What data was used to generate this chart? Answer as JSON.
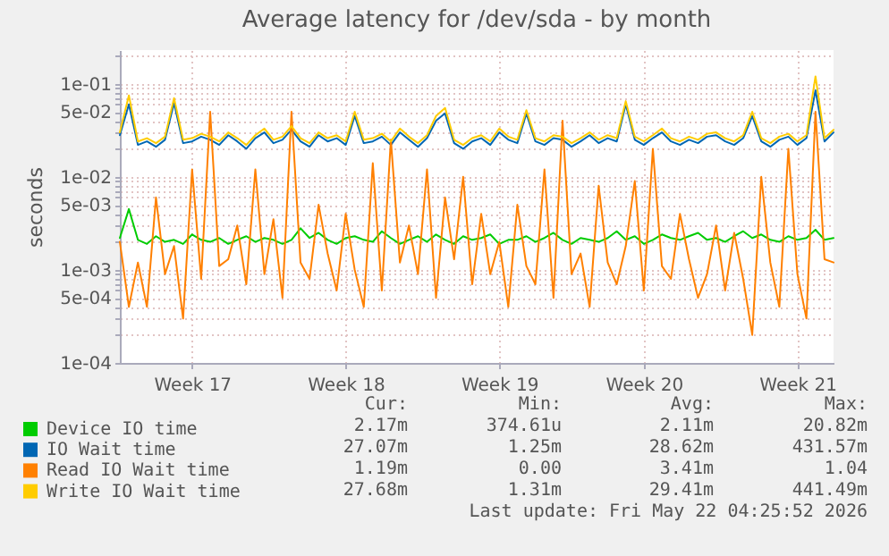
{
  "chart_data": {
    "type": "line",
    "title": "Average latency for /dev/sda - by month",
    "ylabel": "seconds",
    "log": "y",
    "grid": true,
    "legend": "bottom left",
    "line_style": "solid",
    "ylim": [
      0.0001,
      0.23
    ],
    "yticks": [
      {
        "value": 0.0001,
        "label": "1e-04"
      },
      {
        "value": 0.0002,
        "label": null
      },
      {
        "value": 0.0003,
        "label": null
      },
      {
        "value": 0.0004,
        "label": null
      },
      {
        "value": 0.0005,
        "label": "5e-04"
      },
      {
        "value": 0.0006,
        "label": null
      },
      {
        "value": 0.0007,
        "label": null
      },
      {
        "value": 0.0008,
        "label": null
      },
      {
        "value": 0.0009,
        "label": null
      },
      {
        "value": 0.001,
        "label": "1e-03"
      },
      {
        "value": 0.002,
        "label": null
      },
      {
        "value": 0.003,
        "label": null
      },
      {
        "value": 0.004,
        "label": null
      },
      {
        "value": 0.005,
        "label": "5e-03"
      },
      {
        "value": 0.006,
        "label": null
      },
      {
        "value": 0.007,
        "label": null
      },
      {
        "value": 0.008,
        "label": null
      },
      {
        "value": 0.009,
        "label": null
      },
      {
        "value": 0.01,
        "label": "1e-02"
      },
      {
        "value": 0.02,
        "label": null
      },
      {
        "value": 0.03,
        "label": null
      },
      {
        "value": 0.04,
        "label": null
      },
      {
        "value": 0.05,
        "label": "5e-02"
      },
      {
        "value": 0.06,
        "label": null
      },
      {
        "value": 0.07,
        "label": null
      },
      {
        "value": 0.08,
        "label": null
      },
      {
        "value": 0.09,
        "label": null
      },
      {
        "value": 0.1,
        "label": "1e-01"
      },
      {
        "value": 0.2,
        "label": null
      }
    ],
    "categories": [
      null,
      null,
      null,
      null,
      null,
      null,
      null,
      null,
      "Week 17",
      null,
      null,
      null,
      null,
      null,
      null,
      null,
      null,
      null,
      null,
      null,
      null,
      null,
      null,
      null,
      null,
      "Week 18",
      null,
      null,
      null,
      null,
      null,
      null,
      null,
      null,
      null,
      null,
      null,
      null,
      null,
      null,
      null,
      null,
      "Week 19",
      null,
      null,
      null,
      null,
      null,
      null,
      null,
      null,
      null,
      null,
      null,
      null,
      null,
      null,
      null,
      "Week 20",
      null,
      null,
      null,
      null,
      null,
      null,
      null,
      null,
      null,
      null,
      null,
      null,
      null,
      null,
      null,
      null,
      "Week 21",
      null,
      null,
      null,
      null
    ],
    "series": [
      {
        "name": "Device IO time",
        "color": "#00cc00",
        "values": [
          0.0022,
          0.0045,
          0.0021,
          0.0019,
          0.0023,
          0.002,
          0.0021,
          0.0019,
          0.0024,
          0.0021,
          0.002,
          0.0022,
          0.0019,
          0.0021,
          0.0023,
          0.002,
          0.0022,
          0.0021,
          0.0019,
          0.0021,
          0.0028,
          0.0022,
          0.0025,
          0.0021,
          0.0019,
          0.0022,
          0.0023,
          0.0021,
          0.002,
          0.0026,
          0.0022,
          0.0019,
          0.0021,
          0.0023,
          0.002,
          0.0024,
          0.0021,
          0.0019,
          0.0023,
          0.0021,
          0.0022,
          0.0024,
          0.0019,
          0.0021,
          0.0021,
          0.0023,
          0.002,
          0.0022,
          0.0025,
          0.0021,
          0.0019,
          0.0022,
          0.0021,
          0.002,
          0.0022,
          0.0026,
          0.0021,
          0.0023,
          0.0019,
          0.0021,
          0.0024,
          0.0022,
          0.0021,
          0.0023,
          0.0025,
          0.0021,
          0.0022,
          0.002,
          0.0023,
          0.0026,
          0.0022,
          0.0024,
          0.0021,
          0.002,
          0.0023,
          0.0021,
          0.0022,
          0.0027,
          0.0021,
          0.0022
        ]
      },
      {
        "name": "IO Wait time",
        "color": "#0066b3",
        "values": [
          0.028,
          0.06,
          0.022,
          0.024,
          0.021,
          0.025,
          0.062,
          0.023,
          0.024,
          0.027,
          0.025,
          0.022,
          0.028,
          0.024,
          0.02,
          0.026,
          0.03,
          0.023,
          0.025,
          0.032,
          0.024,
          0.021,
          0.028,
          0.024,
          0.026,
          0.022,
          0.045,
          0.023,
          0.024,
          0.027,
          0.022,
          0.03,
          0.025,
          0.021,
          0.026,
          0.04,
          0.048,
          0.023,
          0.02,
          0.024,
          0.026,
          0.022,
          0.03,
          0.025,
          0.023,
          0.048,
          0.024,
          0.022,
          0.026,
          0.025,
          0.021,
          0.024,
          0.028,
          0.023,
          0.026,
          0.024,
          0.06,
          0.025,
          0.022,
          0.026,
          0.03,
          0.024,
          0.022,
          0.025,
          0.023,
          0.027,
          0.028,
          0.024,
          0.022,
          0.026,
          0.045,
          0.024,
          0.021,
          0.025,
          0.027,
          0.022,
          0.026,
          0.085,
          0.024,
          0.03
        ]
      },
      {
        "name": "Read IO Wait time",
        "color": "#ff8000",
        "values": [
          0.002,
          0.0004,
          0.0012,
          0.0004,
          0.006,
          0.0009,
          0.0018,
          0.0003,
          0.012,
          0.0008,
          0.05,
          0.0011,
          0.0013,
          0.003,
          0.0007,
          0.012,
          0.0009,
          0.0035,
          0.0005,
          0.05,
          0.0012,
          0.0008,
          0.005,
          0.0015,
          0.0006,
          0.004,
          0.001,
          0.0004,
          0.014,
          0.0006,
          0.025,
          0.0012,
          0.003,
          0.0009,
          0.012,
          0.0005,
          0.006,
          0.0013,
          0.01,
          0.0007,
          0.004,
          0.0009,
          0.002,
          0.0004,
          0.005,
          0.0011,
          0.0007,
          0.012,
          0.0005,
          0.04,
          0.0009,
          0.0015,
          0.0004,
          0.008,
          0.0012,
          0.0007,
          0.0018,
          0.009,
          0.0006,
          0.02,
          0.0011,
          0.0008,
          0.004,
          0.0013,
          0.0005,
          0.0009,
          0.003,
          0.0006,
          0.0025,
          0.0008,
          0.0002,
          0.01,
          0.0012,
          0.0004,
          0.02,
          0.0009,
          0.0003,
          0.05,
          0.0013,
          0.0012
        ]
      },
      {
        "name": "Write IO Wait time",
        "color": "#ffcc00",
        "values": [
          0.03,
          0.075,
          0.024,
          0.026,
          0.023,
          0.027,
          0.07,
          0.025,
          0.026,
          0.029,
          0.027,
          0.024,
          0.03,
          0.026,
          0.022,
          0.028,
          0.033,
          0.025,
          0.027,
          0.035,
          0.026,
          0.023,
          0.03,
          0.026,
          0.028,
          0.024,
          0.05,
          0.025,
          0.026,
          0.029,
          0.024,
          0.033,
          0.027,
          0.023,
          0.028,
          0.045,
          0.055,
          0.025,
          0.022,
          0.026,
          0.028,
          0.024,
          0.033,
          0.027,
          0.025,
          0.052,
          0.026,
          0.024,
          0.028,
          0.027,
          0.023,
          0.026,
          0.03,
          0.025,
          0.028,
          0.026,
          0.065,
          0.027,
          0.024,
          0.028,
          0.033,
          0.026,
          0.024,
          0.027,
          0.025,
          0.029,
          0.03,
          0.026,
          0.024,
          0.028,
          0.05,
          0.026,
          0.023,
          0.027,
          0.029,
          0.024,
          0.028,
          0.12,
          0.026,
          0.032
        ]
      }
    ],
    "annotations": [
      "Cur:",
      "Min:",
      "Avg:",
      "Max:",
      "2.17m",
      "374.61u",
      "2.11m",
      "20.82m",
      "27.07m",
      "1.25m",
      "28.62m",
      "431.57m",
      "1.19m",
      "0.00",
      "3.41m",
      "1.04",
      "27.68m",
      "1.31m",
      "29.41m",
      "441.49m",
      "Last update: Fri May 22 04:25:52 2026"
    ]
  }
}
